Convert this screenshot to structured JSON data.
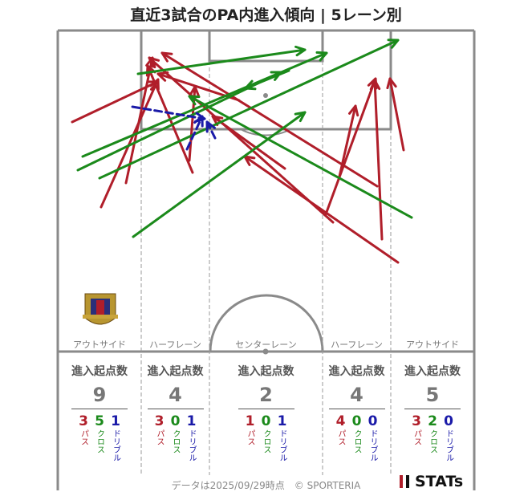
{
  "title": "直近3試合のPA内進入傾向 | 5レーン別",
  "lanes": [
    {
      "name": "アウトサイド",
      "header": "進入起点数",
      "total": "9",
      "pass": "3",
      "cross": "5",
      "dribble": "1"
    },
    {
      "name": "ハーフレーン",
      "header": "進入起点数",
      "total": "4",
      "pass": "3",
      "cross": "0",
      "dribble": "1"
    },
    {
      "name": "センターレーン",
      "header": "進入起点数",
      "total": "2",
      "pass": "1",
      "cross": "0",
      "dribble": "1"
    },
    {
      "name": "ハーフレーン",
      "header": "進入起点数",
      "total": "4",
      "pass": "4",
      "cross": "0",
      "dribble": "0"
    },
    {
      "name": "アウトサイド",
      "header": "進入起点数",
      "total": "5",
      "pass": "3",
      "cross": "2",
      "dribble": "0"
    }
  ],
  "labels": {
    "pass": "パス",
    "cross": "クロス",
    "dribble": "ドリブル"
  },
  "colors": {
    "pass": "#b01e2a",
    "cross": "#1b8a1b",
    "dribble": "#1a1aa8"
  },
  "footer": "データは2025/09/29時点　© SPORTERIA",
  "brand": "STATs",
  "chart_data": {
    "type": "scatter",
    "arrows_pass": [
      [
        [
          90,
          152
        ],
        [
          196,
          102
        ]
      ],
      [
        [
          126,
          258
        ],
        [
          197,
          99
        ]
      ],
      [
        [
          157,
          228
        ],
        [
          190,
          72
        ]
      ],
      [
        [
          240,
          215
        ],
        [
          184,
          82
        ]
      ],
      [
        [
          236,
          200
        ],
        [
          243,
          108
        ]
      ],
      [
        [
          298,
          125
        ],
        [
          197,
          92
        ]
      ],
      [
        [
          415,
          277
        ],
        [
          186,
          72
        ]
      ],
      [
        [
          355,
          210
        ],
        [
          265,
          145
        ]
      ],
      [
        [
          470,
          232
        ],
        [
          202,
          66
        ]
      ],
      [
        [
          423,
          220
        ],
        [
          443,
          132
        ]
      ],
      [
        [
          406,
          267
        ],
        [
          468,
          98
        ]
      ],
      [
        [
          476,
          298
        ],
        [
          467,
          100
        ]
      ],
      [
        [
          503,
          187
        ],
        [
          486,
          98
        ]
      ],
      [
        [
          496,
          327
        ],
        [
          305,
          195
        ]
      ]
    ],
    "arrows_cross": [
      [
        [
          172,
          92
        ],
        [
          380,
          62
        ]
      ],
      [
        [
          97,
          212
        ],
        [
          350,
          90
        ]
      ],
      [
        [
          103,
          195
        ],
        [
          407,
          66
        ]
      ],
      [
        [
          124,
          222
        ],
        [
          496,
          50
        ]
      ],
      [
        [
          166,
          295
        ],
        [
          380,
          140
        ]
      ],
      [
        [
          513,
          271
        ],
        [
          236,
          120
        ]
      ],
      [
        [
          360,
          88
        ],
        [
          306,
          110
        ]
      ]
    ],
    "arrows_dribble": [
      [
        [
          165,
          133
        ],
        [
          255,
          148
        ]
      ],
      [
        [
          233,
          186
        ],
        [
          252,
          145
        ]
      ],
      [
        [
          268,
          172
        ],
        [
          258,
          152
        ]
      ]
    ]
  }
}
